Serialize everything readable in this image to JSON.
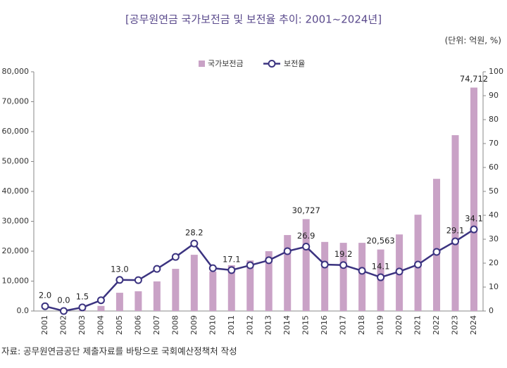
{
  "chart_data": {
    "type": "bar-line",
    "title": "[공무원연금 국가보전금 및 보전율 추이: 2001~2024년]",
    "unit": "(단위: 억원, %)",
    "source": "자료: 공무원연금공단 제출자료를 바탕으로 국회예산정책처 작성",
    "categories": [
      "2001",
      "2002",
      "2003",
      "2004",
      "2005",
      "2006",
      "2007",
      "2008",
      "2009",
      "2010",
      "2011",
      "2012",
      "2013",
      "2014",
      "2015",
      "2016",
      "2017",
      "2018",
      "2019",
      "2020",
      "2021",
      "2022",
      "2023",
      "2024"
    ],
    "series": [
      {
        "name": "국가보전금",
        "type": "bar",
        "color": "#c9a2c6",
        "values": [
          0,
          0,
          500,
          1700,
          6100,
          6600,
          9900,
          14100,
          18800,
          13200,
          15300,
          16900,
          20000,
          25400,
          30727,
          23100,
          22800,
          22800,
          20563,
          25600,
          32200,
          44200,
          58800,
          74712
        ],
        "value_labels": [
          null,
          null,
          null,
          null,
          null,
          null,
          null,
          null,
          null,
          null,
          null,
          null,
          null,
          null,
          "30,727",
          null,
          null,
          null,
          "20,563",
          null,
          null,
          null,
          null,
          "74,712"
        ]
      },
      {
        "name": "보전율",
        "type": "line",
        "axis": "y2",
        "color": "#3b3380",
        "values": [
          2.0,
          0.0,
          1.5,
          4.5,
          13.0,
          12.9,
          17.6,
          22.6,
          28.2,
          17.9,
          17.1,
          19.1,
          21.2,
          25.0,
          26.9,
          19.4,
          19.2,
          16.8,
          14.1,
          16.5,
          19.4,
          24.7,
          29.1,
          34.1
        ],
        "value_labels": [
          "2.0",
          "0.0",
          "1.5",
          null,
          "13.0",
          null,
          null,
          null,
          "28.2",
          null,
          "17.1",
          null,
          null,
          null,
          "26.9",
          null,
          "19.2",
          null,
          "14.1",
          null,
          null,
          null,
          "29.1",
          "34.1"
        ]
      }
    ],
    "ylim": [
      0,
      80000
    ],
    "yticks": [
      {
        "value": 0,
        "label": "0.0"
      },
      {
        "value": 10000,
        "label": "10,000"
      },
      {
        "value": 20000,
        "label": "20,000"
      },
      {
        "value": 30000,
        "label": "30,000"
      },
      {
        "value": 40000,
        "label": "40,000"
      },
      {
        "value": 50000,
        "label": "50,000"
      },
      {
        "value": 60000,
        "label": "60,000"
      },
      {
        "value": 70000,
        "label": "70,000"
      },
      {
        "value": 80000,
        "label": "80,000"
      }
    ],
    "y2lim": [
      0,
      100
    ],
    "y2ticks": [
      0,
      10,
      20,
      30,
      40,
      50,
      60,
      70,
      80,
      90,
      100
    ]
  }
}
